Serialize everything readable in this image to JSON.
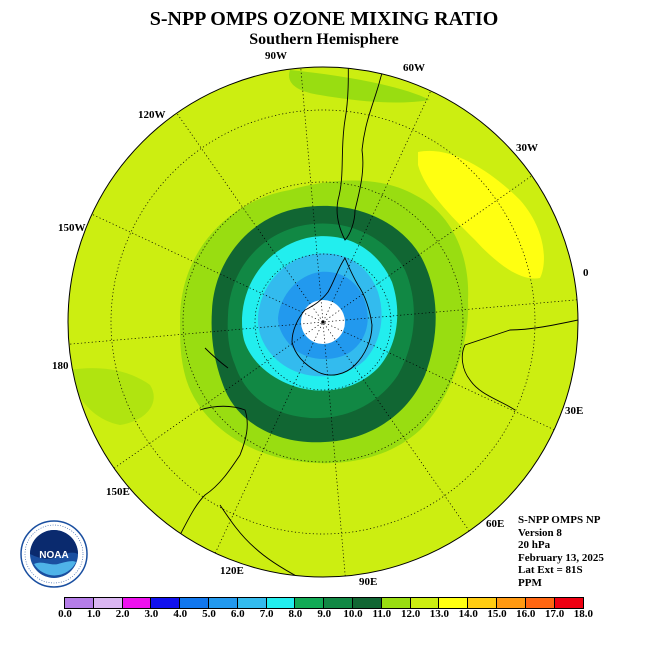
{
  "title": "S-NPP OMPS OZONE MIXING RATIO",
  "subtitle": "Southern Hemisphere",
  "longitude_labels": [
    "90W",
    "60W",
    "30W",
    "0",
    "30E",
    "60E",
    "90E",
    "120E",
    "150E",
    "180",
    "150W",
    "120W"
  ],
  "info": {
    "product": "S-NPP OMPS NP",
    "version": "Version 8",
    "level": "20 hPa",
    "date": "February 13, 2025",
    "lat_ext": "Lat Ext = 81S",
    "units": "PPM"
  },
  "logo": {
    "text": "NOAA",
    "ring_text": "NATIONAL OCEANIC AND ATMOSPHERIC ADMINISTRATION · U.S. DEPARTMENT OF COMMERCE"
  },
  "colorbar": {
    "ticks": [
      "0.0",
      "1.0",
      "2.0",
      "3.0",
      "4.0",
      "5.0",
      "6.0",
      "7.0",
      "8.0",
      "9.0",
      "10.0",
      "11.0",
      "12.0",
      "13.0",
      "14.0",
      "15.0",
      "16.0",
      "17.0",
      "18.0"
    ],
    "colors": [
      "#b57de8",
      "#dab6f2",
      "#ee11ee",
      "#1111ee",
      "#1177ee",
      "#2299ee",
      "#33bbee",
      "#22eeee",
      "#11aa55",
      "#118844",
      "#116633",
      "#99dd11",
      "#ccee11",
      "#ffff11",
      "#ffcc11",
      "#ff9911",
      "#ff6611",
      "#ee0011",
      "#886644"
    ]
  },
  "chart_data": {
    "type": "heatmap",
    "projection": "south polar stereographic",
    "quantity": "ozone mixing ratio (PPM)",
    "level": "20 hPa",
    "region_values": [
      {
        "region": "background",
        "min": 11.0,
        "max": 12.0
      },
      {
        "region": "subtropical maximum near 30W",
        "min": 12.0,
        "max": 13.0
      },
      {
        "region": "collar ring",
        "min": 10.0,
        "max": 11.0
      },
      {
        "region": "vortex edge ring",
        "min": 9.0,
        "max": 10.0
      },
      {
        "region": "vortex edge inner",
        "min": 8.0,
        "max": 9.0
      },
      {
        "region": "vortex interior",
        "min": 7.0,
        "max": 8.0
      },
      {
        "region": "vortex inner",
        "min": 6.0,
        "max": 7.0
      },
      {
        "region": "vortex core",
        "min": 5.0,
        "max": 6.0
      }
    ]
  }
}
